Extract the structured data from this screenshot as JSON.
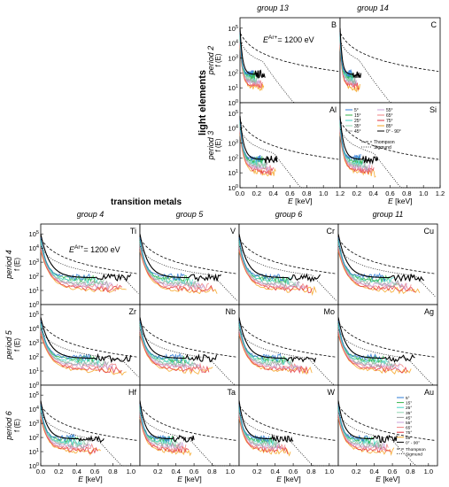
{
  "figure": {
    "light_elements_label": "light elements",
    "transition_metals_label": "transition metals",
    "energy_label_top": "E^{Ar+}= 1200 eV",
    "energy_label_bottom": "E^{Ar+}= 1200 eV",
    "x_axis_label": "E [keV]",
    "y_axis_label": "f (E)"
  },
  "light_elements": {
    "groups": [
      "group 13",
      "group 14"
    ],
    "periods": [
      "period 2",
      "period 3"
    ],
    "panels": [
      {
        "element": "B",
        "period": "period 2",
        "group": "group 13"
      },
      {
        "element": "C",
        "period": "period 2",
        "group": "group 14"
      },
      {
        "element": "Al",
        "period": "period 3",
        "group": "group 13"
      },
      {
        "element": "Si",
        "period": "period 3",
        "group": "group 14"
      }
    ],
    "x_ticks": [
      "0.0",
      "0.2",
      "0.4",
      "0.6",
      "0.8",
      "1.0",
      "1.2"
    ],
    "y_ticks": [
      "10^0",
      "10^1",
      "10^2",
      "10^3",
      "10^4",
      "10^5"
    ],
    "legend": {
      "angles_col1": [
        "5°",
        "15°",
        "25°",
        "35°",
        "45°"
      ],
      "angles_col2": [
        "55°",
        "65°",
        "75°",
        "85°",
        "0° - 90°"
      ],
      "models": [
        "Thompson",
        "Sigmund"
      ]
    }
  },
  "transition_metals": {
    "groups": [
      "group 4",
      "group 5",
      "group 6",
      "group 11"
    ],
    "periods": [
      "period 4",
      "period 5",
      "period 6"
    ],
    "elements": [
      [
        "Ti",
        "V",
        "Cr",
        "Cu"
      ],
      [
        "Zr",
        "Nb",
        "Mo",
        "Ag"
      ],
      [
        "Hf",
        "Ta",
        "W",
        "Au"
      ]
    ],
    "x_ticks": [
      "0.0",
      "0.2",
      "0.4",
      "0.6",
      "0.8",
      "1.0"
    ],
    "y_ticks": [
      "10^0",
      "10^1",
      "10^2",
      "10^3",
      "10^4",
      "10^5"
    ],
    "legend": {
      "angles": [
        "5°",
        "15°",
        "25°",
        "35°",
        "45°",
        "55°",
        "65°",
        "75°",
        "85°",
        "0° - 90°"
      ],
      "models": [
        "Thompson",
        "Sigmund"
      ]
    }
  },
  "colors": {
    "angle_colors": [
      "#2e7bd6",
      "#33b24a",
      "#44d6c4",
      "#8fd4b0",
      "#9a9a9a",
      "#c9a0d9",
      "#f08080",
      "#e2303c",
      "#f6a623",
      "#000000"
    ],
    "model_color": "#000000"
  },
  "chart_data": {
    "type": "line",
    "description_scale": "log-y",
    "x_unit": "keV",
    "xlabel": "E [keV]",
    "ylabel": "f (E)",
    "y_scale": "log",
    "ylim": [
      1,
      500000
    ],
    "series_names": [
      "5°",
      "15°",
      "25°",
      "35°",
      "45°",
      "55°",
      "65°",
      "75°",
      "85°",
      "0° - 90°",
      "Thompson",
      "Sigmund"
    ],
    "panels": [
      {
        "element": "B",
        "xlim": [
          0,
          1.2
        ],
        "cutoff_keV": 0.3,
        "peak_log": 5.0
      },
      {
        "element": "C",
        "xlim": [
          0,
          1.2
        ],
        "cutoff_keV": 0.25,
        "peak_log": 5.0
      },
      {
        "element": "Al",
        "xlim": [
          0,
          1.2
        ],
        "cutoff_keV": 0.45,
        "peak_log": 4.8
      },
      {
        "element": "Si",
        "xlim": [
          0,
          1.2
        ],
        "cutoff_keV": 0.45,
        "peak_log": 4.8
      },
      {
        "element": "Ti",
        "xlim": [
          0,
          1.1
        ],
        "cutoff_keV": 1.0,
        "peak_log": 5.0
      },
      {
        "element": "V",
        "xlim": [
          0,
          1.1
        ],
        "cutoff_keV": 0.9,
        "peak_log": 5.0
      },
      {
        "element": "Cr",
        "xlim": [
          0,
          1.1
        ],
        "cutoff_keV": 0.9,
        "peak_log": 5.0
      },
      {
        "element": "Cu",
        "xlim": [
          0,
          1.1
        ],
        "cutoff_keV": 0.95,
        "peak_log": 5.0
      },
      {
        "element": "Zr",
        "xlim": [
          0,
          1.1
        ],
        "cutoff_keV": 1.0,
        "peak_log": 4.8
      },
      {
        "element": "Nb",
        "xlim": [
          0,
          1.1
        ],
        "cutoff_keV": 0.85,
        "peak_log": 4.8
      },
      {
        "element": "Mo",
        "xlim": [
          0,
          1.1
        ],
        "cutoff_keV": 0.85,
        "peak_log": 4.8
      },
      {
        "element": "Ag",
        "xlim": [
          0,
          1.1
        ],
        "cutoff_keV": 0.85,
        "peak_log": 4.8
      },
      {
        "element": "Hf",
        "xlim": [
          0,
          1.1
        ],
        "cutoff_keV": 0.7,
        "peak_log": 4.6
      },
      {
        "element": "Ta",
        "xlim": [
          0,
          1.1
        ],
        "cutoff_keV": 0.6,
        "peak_log": 4.6
      },
      {
        "element": "W",
        "xlim": [
          0,
          1.1
        ],
        "cutoff_keV": 0.6,
        "peak_log": 4.6
      },
      {
        "element": "Au",
        "xlim": [
          0,
          1.1
        ],
        "cutoff_keV": 0.65,
        "peak_log": 4.6
      }
    ]
  }
}
